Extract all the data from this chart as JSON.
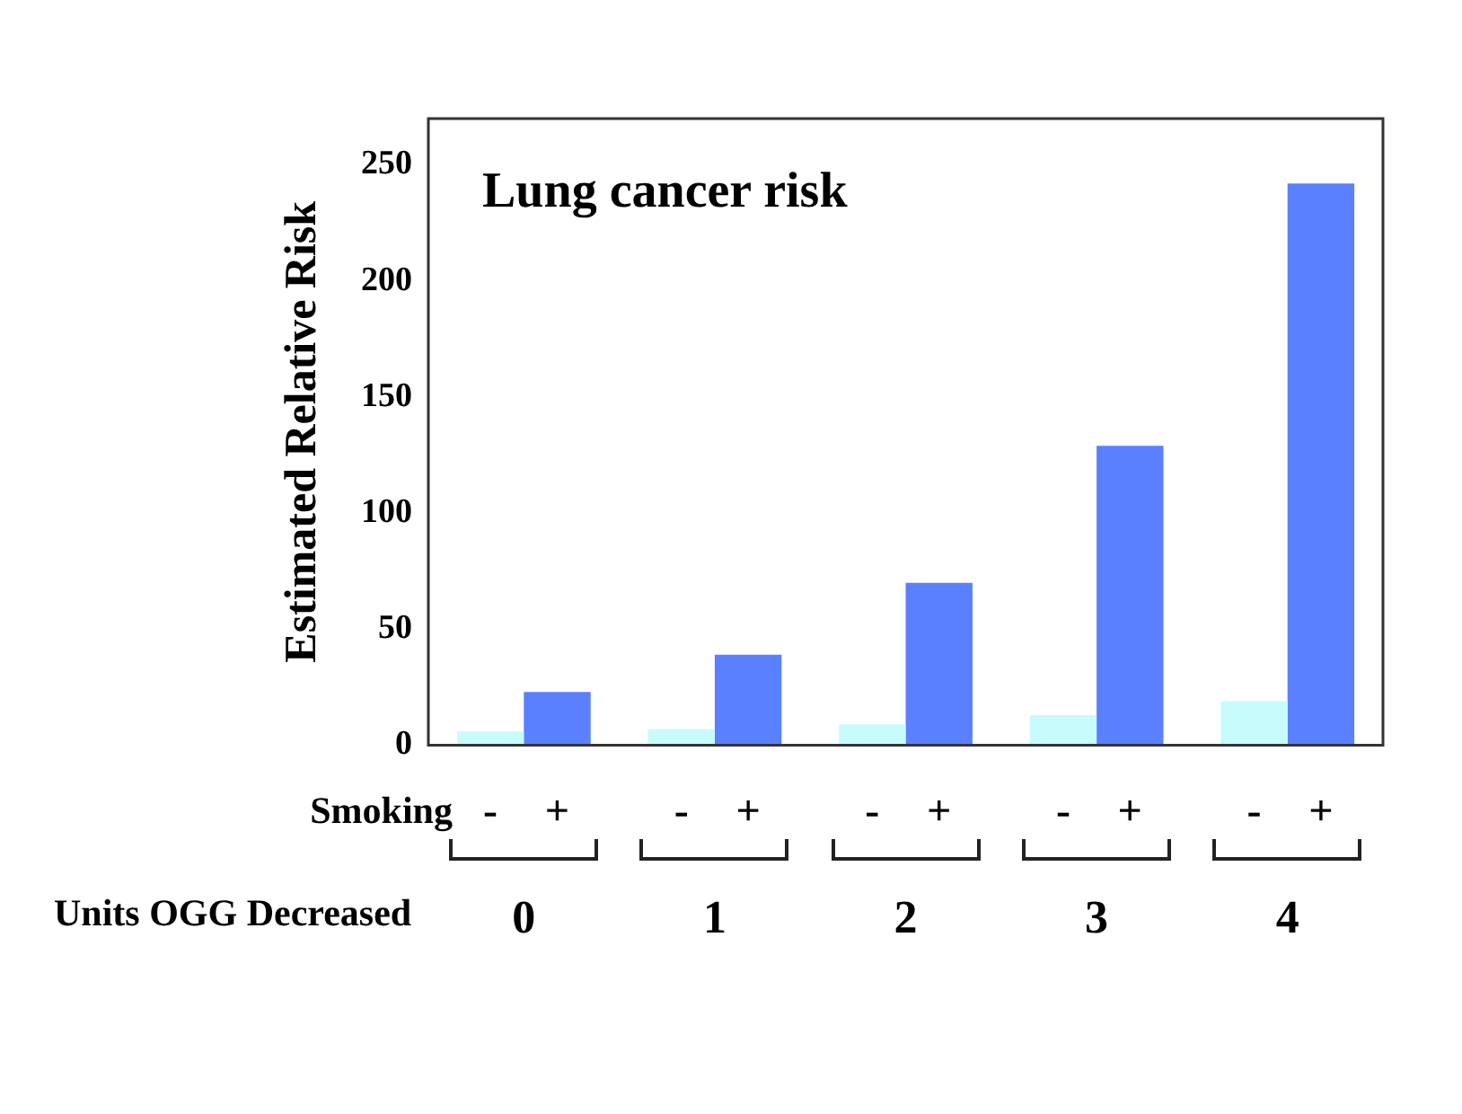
{
  "chart_data": {
    "type": "bar",
    "title": "Lung cancer risk",
    "ylabel": "Estimated Relative Risk",
    "xlabel": "Units OGG Decreased",
    "legend_title": "Smoking",
    "categories": [
      "0",
      "1",
      "2",
      "3",
      "4"
    ],
    "series": [
      {
        "name": "-",
        "color": "#c8fcfc",
        "values": [
          6,
          7,
          9,
          13,
          19
        ]
      },
      {
        "name": "+",
        "color": "#5a80ff",
        "values": [
          23,
          39,
          70,
          129,
          242
        ]
      }
    ],
    "ylim": [
      0,
      270
    ],
    "yticks": [
      0,
      50,
      100,
      150,
      200,
      250
    ],
    "grid": false,
    "legend": "bottom"
  }
}
